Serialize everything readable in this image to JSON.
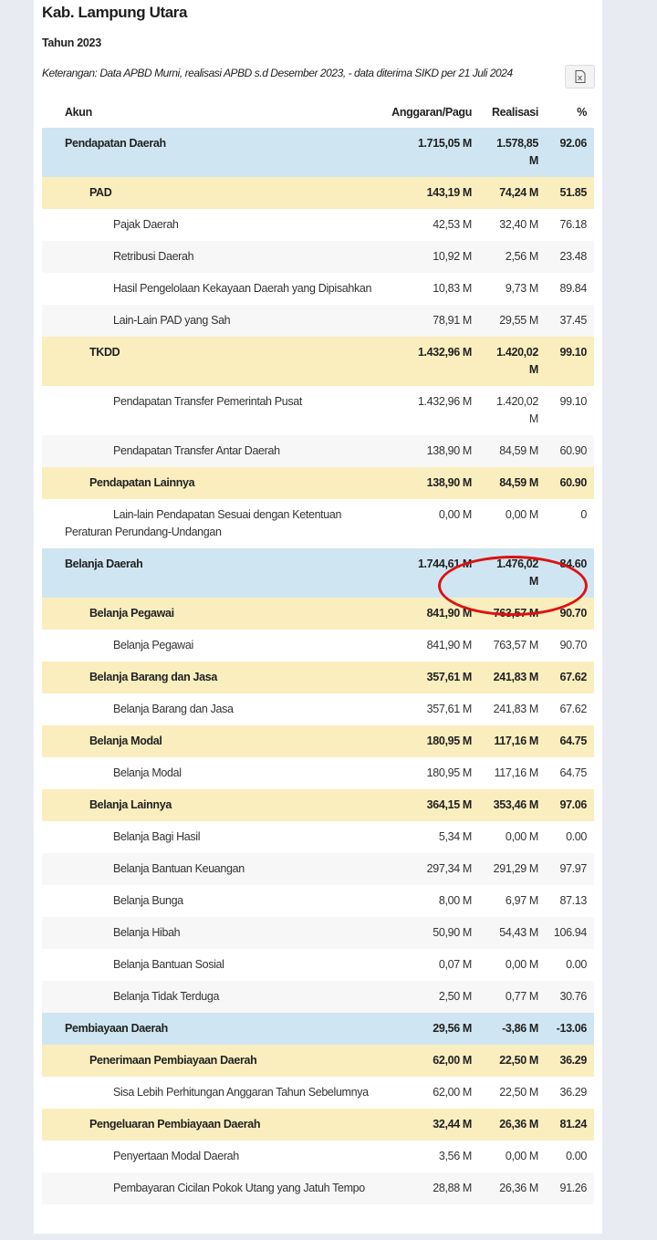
{
  "title": "Kab. Lampung Utara",
  "year": "Tahun 2023",
  "note": "Keterangan: Data APBD Murni, realisasi APBD s.d Desember 2023, - data diterima SIKD per 21 Juli 2024",
  "export_icon": "excel-export-icon",
  "colors": {
    "level0": "#cfe6f2",
    "level1": "#faeebf",
    "highlight": "#d11111"
  },
  "table": {
    "headers": {
      "akun": "Akun",
      "anggaran": "Anggaran/Pagu",
      "realisasi": "Realisasi",
      "persen": "%"
    },
    "rows": [
      {
        "level": 0,
        "akun": "Pendapatan Daerah",
        "anggaran": "1.715,05 M",
        "realisasi": "1.578,85 M",
        "persen": "92.06"
      },
      {
        "level": 1,
        "akun": "PAD",
        "anggaran": "143,19 M",
        "realisasi": "74,24 M",
        "persen": "51.85"
      },
      {
        "level": 2,
        "akun": "Pajak Daerah",
        "anggaran": "42,53 M",
        "realisasi": "32,40 M",
        "persen": "76.18"
      },
      {
        "level": 2,
        "akun": "Retribusi Daerah",
        "anggaran": "10,92 M",
        "realisasi": "2,56 M",
        "persen": "23.48"
      },
      {
        "level": 2,
        "akun": "Hasil Pengelolaan Kekayaan Daerah yang Dipisahkan",
        "anggaran": "10,83 M",
        "realisasi": "9,73 M",
        "persen": "89.84"
      },
      {
        "level": 2,
        "akun": "Lain-Lain PAD yang Sah",
        "anggaran": "78,91 M",
        "realisasi": "29,55 M",
        "persen": "37.45"
      },
      {
        "level": 1,
        "akun": "TKDD",
        "anggaran": "1.432,96 M",
        "realisasi": "1.420,02 M",
        "persen": "99.10"
      },
      {
        "level": 2,
        "akun": "Pendapatan Transfer Pemerintah Pusat",
        "anggaran": "1.432,96 M",
        "realisasi": "1.420,02 M",
        "persen": "99.10"
      },
      {
        "level": 2,
        "akun": "Pendapatan Transfer Antar Daerah",
        "anggaran": "138,90 M",
        "realisasi": "84,59 M",
        "persen": "60.90"
      },
      {
        "level": 1,
        "akun": "Pendapatan Lainnya",
        "anggaran": "138,90 M",
        "realisasi": "84,59 M",
        "persen": "60.90"
      },
      {
        "level": 2,
        "akun": "Lain-lain Pendapatan Sesuai dengan Ketentuan Peraturan Perundang-Undangan",
        "anggaran": "0,00 M",
        "realisasi": "0,00 M",
        "persen": "0"
      },
      {
        "level": 0,
        "akun": "Belanja Daerah",
        "anggaran": "1.744,61 M",
        "realisasi": "1.476,02 M",
        "persen": "84.60",
        "highlighted": true
      },
      {
        "level": 1,
        "akun": "Belanja Pegawai",
        "anggaran": "841,90 M",
        "realisasi": "763,57 M",
        "persen": "90.70"
      },
      {
        "level": 2,
        "akun": "Belanja Pegawai",
        "anggaran": "841,90 M",
        "realisasi": "763,57 M",
        "persen": "90.70"
      },
      {
        "level": 1,
        "akun": "Belanja Barang dan Jasa",
        "anggaran": "357,61 M",
        "realisasi": "241,83 M",
        "persen": "67.62"
      },
      {
        "level": 2,
        "akun": "Belanja Barang dan Jasa",
        "anggaran": "357,61 M",
        "realisasi": "241,83 M",
        "persen": "67.62"
      },
      {
        "level": 1,
        "akun": "Belanja Modal",
        "anggaran": "180,95 M",
        "realisasi": "117,16 M",
        "persen": "64.75"
      },
      {
        "level": 2,
        "akun": "Belanja Modal",
        "anggaran": "180,95 M",
        "realisasi": "117,16 M",
        "persen": "64.75"
      },
      {
        "level": 1,
        "akun": "Belanja Lainnya",
        "anggaran": "364,15 M",
        "realisasi": "353,46 M",
        "persen": "97.06"
      },
      {
        "level": 2,
        "akun": "Belanja Bagi Hasil",
        "anggaran": "5,34 M",
        "realisasi": "0,00 M",
        "persen": "0.00"
      },
      {
        "level": 2,
        "akun": "Belanja Bantuan Keuangan",
        "anggaran": "297,34 M",
        "realisasi": "291,29 M",
        "persen": "97.97"
      },
      {
        "level": 2,
        "akun": "Belanja Bunga",
        "anggaran": "8,00 M",
        "realisasi": "6,97 M",
        "persen": "87.13"
      },
      {
        "level": 2,
        "akun": "Belanja Hibah",
        "anggaran": "50,90 M",
        "realisasi": "54,43 M",
        "persen": "106.94"
      },
      {
        "level": 2,
        "akun": "Belanja Bantuan Sosial",
        "anggaran": "0,07 M",
        "realisasi": "0,00 M",
        "persen": "0.00"
      },
      {
        "level": 2,
        "akun": "Belanja Tidak Terduga",
        "anggaran": "2,50 M",
        "realisasi": "0,77 M",
        "persen": "30.76"
      },
      {
        "level": 0,
        "akun": "Pembiayaan Daerah",
        "anggaran": "29,56 M",
        "realisasi": "-3,86 M",
        "persen": "-13.06"
      },
      {
        "level": 1,
        "akun": "Penerimaan Pembiayaan Daerah",
        "anggaran": "62,00 M",
        "realisasi": "22,50 M",
        "persen": "36.29"
      },
      {
        "level": 2,
        "akun": "Sisa Lebih Perhitungan Anggaran Tahun Sebelumnya",
        "anggaran": "62,00 M",
        "realisasi": "22,50 M",
        "persen": "36.29"
      },
      {
        "level": 1,
        "akun": "Pengeluaran Pembiayaan Daerah",
        "anggaran": "32,44 M",
        "realisasi": "26,36 M",
        "persen": "81.24"
      },
      {
        "level": 2,
        "akun": "Penyertaan Modal Daerah",
        "anggaran": "3,56 M",
        "realisasi": "0,00 M",
        "persen": "0.00"
      },
      {
        "level": 2,
        "akun": "Pembayaran Cicilan Pokok Utang yang Jatuh Tempo",
        "anggaran": "28,88 M",
        "realisasi": "26,36 M",
        "persen": "91.26"
      }
    ]
  }
}
